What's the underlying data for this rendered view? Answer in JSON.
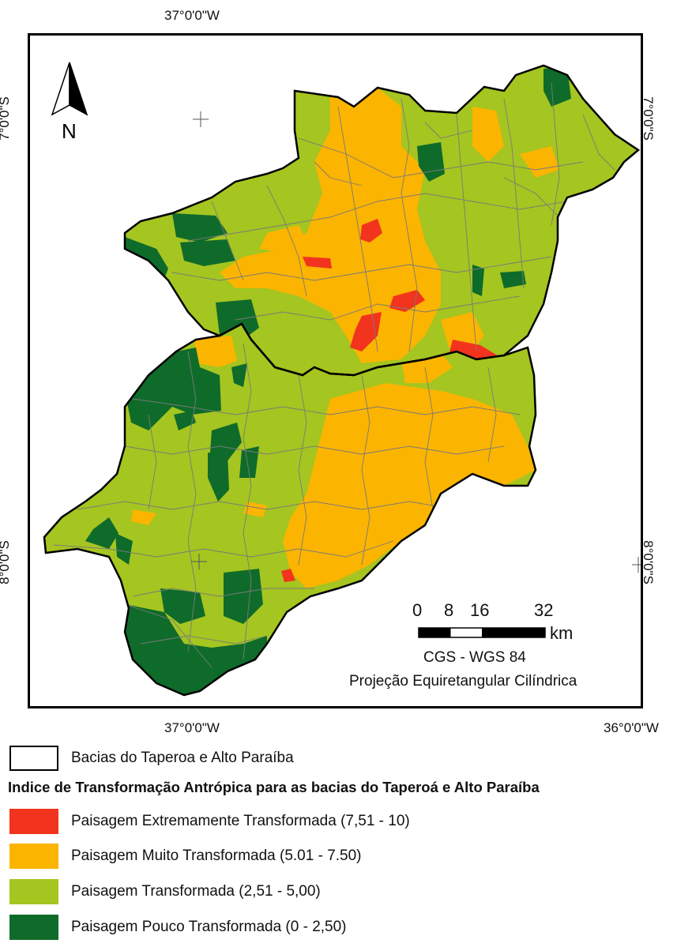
{
  "colors": {
    "extreme": "#f2331e",
    "very": "#fbb400",
    "transformed": "#a5c520",
    "low": "#0f6b2a",
    "boundary": "#000000",
    "subbasin_line": "#7a7a7a"
  },
  "coordinates": {
    "top_lon": "37°0'0\"W",
    "bottom_lon_1": "37°0'0\"W",
    "bottom_lon_2": "36°0'0\"W",
    "left_lat_1": "7°0'0\"S",
    "left_lat_2": "8°0'0\"S",
    "right_lat_1": "7°0'0\"S",
    "right_lat_2": "8°0'0\"S"
  },
  "north_arrow": {
    "label": "N",
    "icon": "north-arrow-icon"
  },
  "scale_bar": {
    "ticks": [
      "0",
      "8",
      "16",
      "32"
    ],
    "unit": "km"
  },
  "info": {
    "datum": "CGS - WGS 84",
    "projection": "Projeção Equiretangular Cilíndrica"
  },
  "legend": {
    "boundary_label": "Bacias do Taperoa e Alto Paraíba",
    "title": "Indice de Transformação Antrópica para as bacias do Taperoá e Alto Paraíba",
    "items": [
      {
        "key": "extreme",
        "label": "Paisagem Extremamente Transformada (7,51 - 10)"
      },
      {
        "key": "very",
        "label": "Paisagem Muito Transformada (5.01 - 7.50)"
      },
      {
        "key": "transformed",
        "label": "Paisagem Transformada  (2,51 - 5,00)"
      },
      {
        "key": "low",
        "label": "Paisagem Pouco Transformada (0 - 2,50)"
      }
    ]
  }
}
